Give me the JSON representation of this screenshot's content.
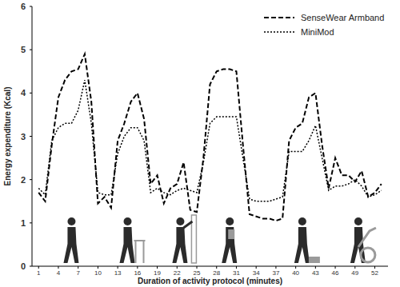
{
  "chart_data": {
    "type": "line",
    "x_label": "Duration of activity protocol (minutes)",
    "y_label": "Energy expenditure (Kcal)",
    "x": [
      1,
      2,
      3,
      4,
      5,
      6,
      7,
      8,
      9,
      10,
      11,
      12,
      13,
      14,
      15,
      16,
      17,
      18,
      19,
      20,
      21,
      22,
      23,
      24,
      25,
      26,
      27,
      28,
      29,
      30,
      31,
      32,
      33,
      34,
      35,
      36,
      37,
      38,
      39,
      40,
      41,
      42,
      43,
      44,
      45,
      46,
      47,
      48,
      49,
      50,
      51,
      52,
      53
    ],
    "series": [
      {
        "name": "SenseWear Armband",
        "color": "#000000",
        "line_style": "dashed",
        "values": [
          1.7,
          1.5,
          2.8,
          3.9,
          4.3,
          4.5,
          4.55,
          4.9,
          3.8,
          1.45,
          1.6,
          1.35,
          2.9,
          3.3,
          3.8,
          4.0,
          3.4,
          1.9,
          2.1,
          1.45,
          1.8,
          1.9,
          2.4,
          1.3,
          1.25,
          2.5,
          4.2,
          4.5,
          4.55,
          4.55,
          4.5,
          2.8,
          1.2,
          1.15,
          1.1,
          1.1,
          1.05,
          1.1,
          2.9,
          3.2,
          3.3,
          3.9,
          4.0,
          2.8,
          1.8,
          2.5,
          2.1,
          2.1,
          1.95,
          2.2,
          1.6,
          1.7,
          1.9
        ]
      },
      {
        "name": "MiniMod",
        "color": "#000000",
        "line_style": "dotted",
        "values": [
          1.8,
          1.65,
          2.9,
          3.2,
          3.3,
          3.3,
          3.6,
          4.3,
          3.3,
          1.7,
          1.65,
          1.65,
          2.6,
          3.0,
          3.2,
          3.2,
          2.9,
          1.7,
          1.8,
          1.7,
          1.65,
          1.75,
          1.8,
          1.75,
          1.7,
          2.4,
          3.3,
          3.45,
          3.45,
          3.45,
          3.45,
          2.5,
          1.55,
          1.5,
          1.5,
          1.5,
          1.55,
          1.6,
          2.65,
          2.65,
          2.65,
          2.9,
          3.25,
          2.5,
          1.75,
          1.85,
          1.85,
          1.9,
          2.0,
          1.85,
          1.6,
          1.65,
          1.75
        ]
      }
    ],
    "xlim": [
      0,
      54
    ],
    "xticks": [
      1,
      4,
      7,
      10,
      13,
      16,
      19,
      22,
      25,
      28,
      31,
      34,
      37,
      40,
      43,
      46,
      49,
      52
    ],
    "ylim": [
      0,
      6
    ],
    "yticks": [
      0,
      1,
      2,
      3,
      4,
      5,
      6
    ],
    "grid": false,
    "legend": "top-right"
  }
}
